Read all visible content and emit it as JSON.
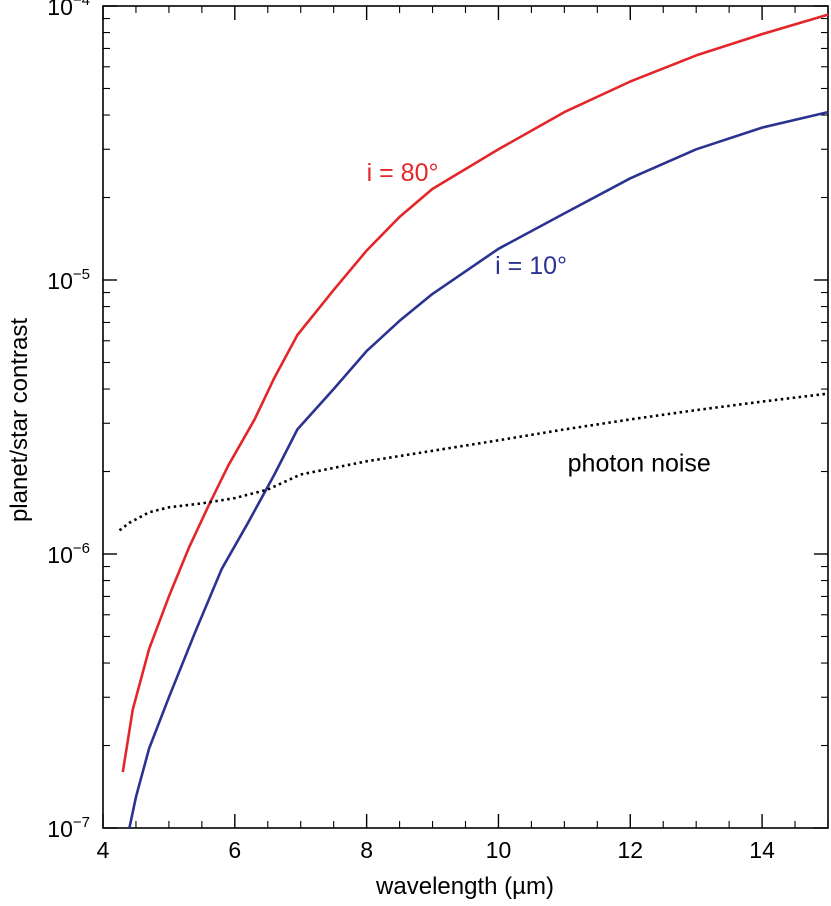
{
  "chart_data": {
    "type": "line",
    "title": "",
    "xlabel": "wavelength (µm)",
    "ylabel": "planet/star contrast",
    "xlim": [
      4,
      15
    ],
    "ylim": [
      1e-07,
      0.0001
    ],
    "yscale": "log",
    "grid": false,
    "x_ticks": [
      {
        "value": 4,
        "label": "4"
      },
      {
        "value": 6,
        "label": "6"
      },
      {
        "value": 8,
        "label": "8"
      },
      {
        "value": 10,
        "label": "10"
      },
      {
        "value": 12,
        "label": "12"
      },
      {
        "value": 14,
        "label": "14"
      }
    ],
    "y_ticks": [
      {
        "value": 1e-07,
        "base": "10",
        "exp": "−7"
      },
      {
        "value": 1e-06,
        "base": "10",
        "exp": "−6"
      },
      {
        "value": 1e-05,
        "base": "10",
        "exp": "−5"
      },
      {
        "value": 0.0001,
        "base": "10",
        "exp": "−4"
      }
    ],
    "series": [
      {
        "label": "i = 80°",
        "color": "#e3262a",
        "style": "solid",
        "label_at": [
          8.0,
          2.3e-05
        ],
        "points": [
          [
            4.3,
            1.6e-07
          ],
          [
            4.45,
            2.7e-07
          ],
          [
            4.7,
            4.5e-07
          ],
          [
            5.0,
            7e-07
          ],
          [
            5.3,
            1.05e-06
          ],
          [
            5.6,
            1.5e-06
          ],
          [
            5.9,
            2.1e-06
          ],
          [
            6.3,
            3.1e-06
          ],
          [
            6.6,
            4.4e-06
          ],
          [
            6.95,
            6.3e-06
          ],
          [
            7.5,
            9.2e-06
          ],
          [
            8.0,
            1.28e-05
          ],
          [
            8.5,
            1.7e-05
          ],
          [
            9.0,
            2.15e-05
          ],
          [
            10.0,
            3e-05
          ],
          [
            11.0,
            4.1e-05
          ],
          [
            12.0,
            5.3e-05
          ],
          [
            13.0,
            6.6e-05
          ],
          [
            14.0,
            7.9e-05
          ],
          [
            15.0,
            9.3e-05
          ]
        ]
      },
      {
        "label": "i = 10°",
        "color": "#2b3391",
        "style": "solid",
        "label_at": [
          9.95,
          1.05e-05
        ],
        "points": [
          [
            4.4,
            1e-07
          ],
          [
            4.5,
            1.3e-07
          ],
          [
            4.7,
            1.95e-07
          ],
          [
            5.0,
            3e-07
          ],
          [
            5.4,
            5.2e-07
          ],
          [
            5.8,
            8.8e-07
          ],
          [
            6.2,
            1.3e-06
          ],
          [
            6.6,
            1.95e-06
          ],
          [
            6.95,
            2.85e-06
          ],
          [
            7.5,
            4e-06
          ],
          [
            8.0,
            5.5e-06
          ],
          [
            8.5,
            7.1e-06
          ],
          [
            9.0,
            8.9e-06
          ],
          [
            10.0,
            1.3e-05
          ],
          [
            11.0,
            1.75e-05
          ],
          [
            12.0,
            2.35e-05
          ],
          [
            13.0,
            3e-05
          ],
          [
            14.0,
            3.6e-05
          ],
          [
            15.0,
            4.1e-05
          ]
        ]
      },
      {
        "label": "photon noise",
        "color": "#000000",
        "style": "dotted",
        "label_at": [
          11.05,
          2e-06
        ],
        "points": [
          [
            4.25,
            1.22e-06
          ],
          [
            4.4,
            1.3e-06
          ],
          [
            4.7,
            1.42e-06
          ],
          [
            5.0,
            1.48e-06
          ],
          [
            5.5,
            1.53e-06
          ],
          [
            6.0,
            1.6e-06
          ],
          [
            6.5,
            1.72e-06
          ],
          [
            7.0,
            1.95e-06
          ],
          [
            8.0,
            2.18e-06
          ],
          [
            9.0,
            2.38e-06
          ],
          [
            10.0,
            2.6e-06
          ],
          [
            11.0,
            2.85e-06
          ],
          [
            12.0,
            3.1e-06
          ],
          [
            13.0,
            3.35e-06
          ],
          [
            14.0,
            3.6e-06
          ],
          [
            15.0,
            3.85e-06
          ]
        ]
      }
    ]
  }
}
